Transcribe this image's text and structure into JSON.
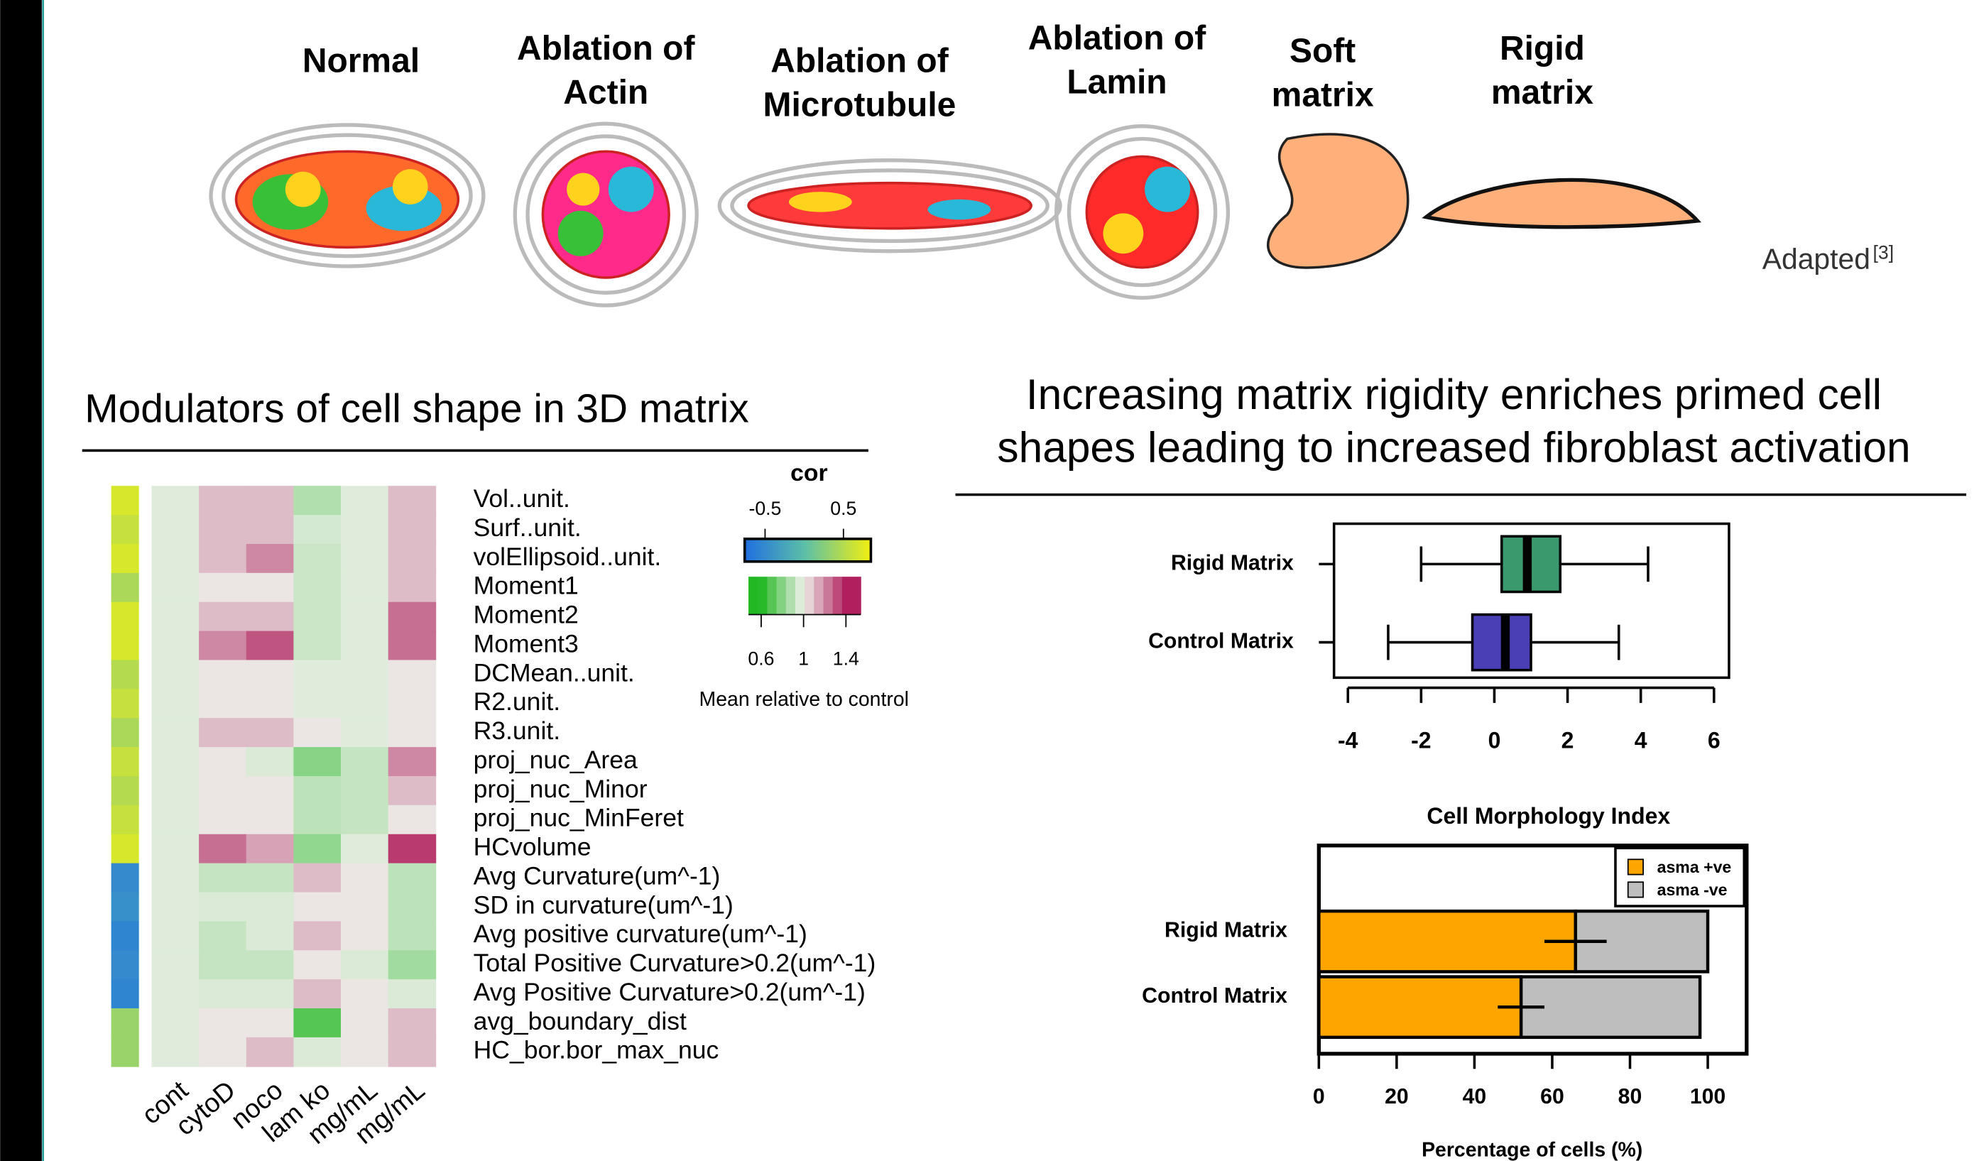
{
  "illustrations": [
    {
      "lines": [
        "Normal"
      ]
    },
    {
      "lines": [
        "Ablation of",
        "Actin"
      ]
    },
    {
      "lines": [
        "Ablation of",
        "Microtubule"
      ]
    },
    {
      "lines": [
        "Ablation of",
        "Lamin"
      ]
    },
    {
      "lines": [
        "Soft",
        "matrix"
      ]
    },
    {
      "lines": [
        "Rigid",
        "matrix"
      ]
    }
  ],
  "attribution": {
    "text": "Adapted",
    "ref": "[3]"
  },
  "left_heading": "Modulators of cell shape in 3D matrix",
  "right_heading": [
    "Increasing matrix rigidity enriches primed cell",
    "shapes leading to increased fibroblast activation"
  ],
  "chart_data": [
    {
      "type": "heatmap",
      "columns": [
        "cont",
        "cytoD",
        "noco",
        "lam ko",
        "mg/mL",
        "mg/mL"
      ],
      "rows": [
        "Vol..unit.",
        "Surf..unit.",
        "volEllipsoid..unit.",
        "Moment1",
        "Moment2",
        "Moment3",
        "DCMean..unit.",
        "R2.unit.",
        "R3.unit.",
        "proj_nuc_Area",
        "proj_nuc_Minor",
        "proj_nuc_MinFeret",
        "HCvolume",
        "Avg Curvature(um^-1)",
        "SD in curvature(um^-1)",
        "Avg positive curvature(um^-1)",
        "Total Positive Curvature>0.2(um^-1)",
        "Avg Positive Curvature>0.2(um^-1)",
        "avg_boundary_dist",
        "HC_bor.bor_max_nuc"
      ],
      "values": [
        [
          0.97,
          1.1,
          1.1,
          0.88,
          0.97,
          1.1
        ],
        [
          0.97,
          1.1,
          1.1,
          0.95,
          0.97,
          1.1
        ],
        [
          0.97,
          1.1,
          1.2,
          0.93,
          0.97,
          1.1
        ],
        [
          0.97,
          1.02,
          1.02,
          0.93,
          0.97,
          1.1
        ],
        [
          0.97,
          1.1,
          1.1,
          0.93,
          0.97,
          1.25
        ],
        [
          0.97,
          1.2,
          1.3,
          0.93,
          0.97,
          1.25
        ],
        [
          0.97,
          1.02,
          1.02,
          0.97,
          0.97,
          1.02
        ],
        [
          0.97,
          1.02,
          1.02,
          0.97,
          0.97,
          1.02
        ],
        [
          0.97,
          1.1,
          1.1,
          1.02,
          0.97,
          1.02
        ],
        [
          0.97,
          1.02,
          0.96,
          0.8,
          0.92,
          1.2
        ],
        [
          0.97,
          1.02,
          1.02,
          0.9,
          0.92,
          1.1
        ],
        [
          0.97,
          1.02,
          1.02,
          0.9,
          0.92,
          1.02
        ],
        [
          0.97,
          1.25,
          1.15,
          0.82,
          0.97,
          1.35
        ],
        [
          0.97,
          0.92,
          0.92,
          1.1,
          1.02,
          0.9
        ],
        [
          0.97,
          0.96,
          0.96,
          1.02,
          1.02,
          0.9
        ],
        [
          0.97,
          0.92,
          0.96,
          1.1,
          1.02,
          0.9
        ],
        [
          0.97,
          0.92,
          0.92,
          1.02,
          0.96,
          0.85
        ],
        [
          0.97,
          0.96,
          0.96,
          1.1,
          1.02,
          0.96
        ],
        [
          0.97,
          1.02,
          1.02,
          0.7,
          1.02,
          1.1
        ],
        [
          0.97,
          1.02,
          1.1,
          0.96,
          1.02,
          1.1
        ]
      ],
      "color_stops": {
        "values": [
          0.6,
          1,
          1.4
        ],
        "colors": [
          "#22b822",
          "#eef0ea",
          "#b0205e"
        ]
      },
      "legend_title": "Mean relative to control",
      "legend_ticks": [
        0.6,
        1,
        1.4
      ],
      "legend_lim": [
        0.48,
        1.54
      ],
      "annotation": {
        "name": "cor",
        "values": [
          0.7,
          0.6,
          0.7,
          0.45,
          0.7,
          0.7,
          0.5,
          0.6,
          0.45,
          0.6,
          0.5,
          0.6,
          0.7,
          -0.5,
          -0.45,
          -0.55,
          -0.5,
          -0.55,
          0.35,
          0.35
        ],
        "ticks": [
          -0.5,
          0.5
        ],
        "lim": [
          -0.76,
          0.85
        ],
        "color_stops": {
          "values": [
            -0.76,
            0,
            0.85
          ],
          "colors": [
            "#1f6fe0",
            "#5bbfa8",
            "#f2ef10"
          ]
        }
      }
    },
    {
      "type": "box",
      "series": [
        {
          "name": "Rigid Matrix",
          "color": "#3a9a6e",
          "values": [
            -2,
            0.2,
            0.9,
            1.8,
            4.2
          ]
        },
        {
          "name": "Control Matrix",
          "color": "#4a3fb4",
          "values": [
            -2.9,
            -0.6,
            0.3,
            1,
            3.4
          ]
        }
      ],
      "xlim": [
        -4.38,
        6.41
      ],
      "xticks": [
        -4,
        -2,
        0,
        2,
        4,
        6
      ]
    },
    {
      "type": "bar",
      "title": "Cell Morphology Index",
      "categories": [
        "Rigid Matrix",
        "Control Matrix"
      ],
      "series": [
        {
          "name": "asma +ve",
          "color": "#ffa500",
          "values": [
            66,
            52
          ],
          "errors": [
            8,
            6
          ]
        },
        {
          "name": "asma -ve",
          "color": "#bebebe",
          "values": [
            34,
            46
          ]
        }
      ],
      "xlim": [
        0,
        110
      ],
      "xticks": [
        0,
        20,
        40,
        60,
        80,
        100
      ],
      "xlabel": "Percentage of cells (%)"
    }
  ]
}
